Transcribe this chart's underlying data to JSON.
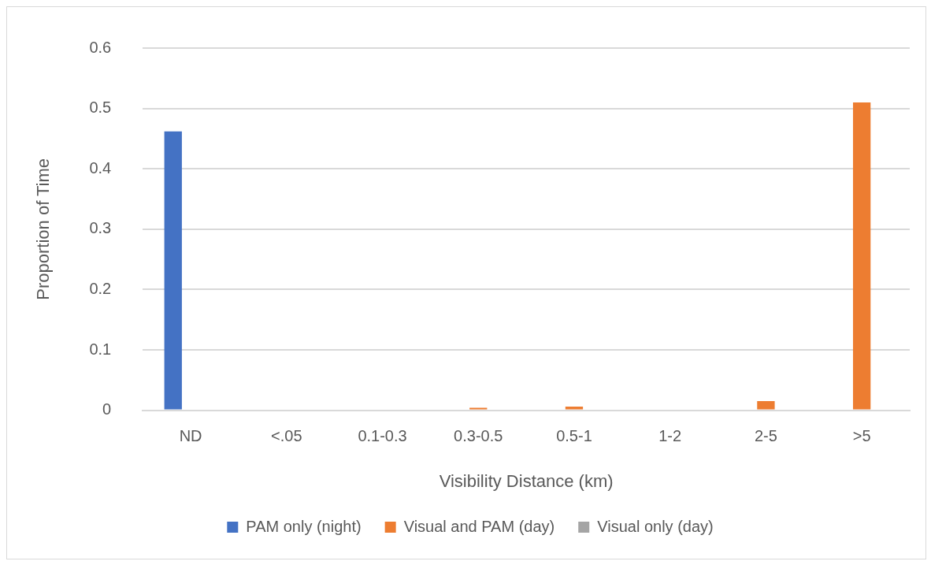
{
  "chart_data": {
    "type": "bar",
    "xlabel": "Visibility Distance (km)",
    "ylabel": "Proportion of Time",
    "categories": [
      "ND",
      "<.05",
      "0.1-0.3",
      "0.3-0.5",
      "0.5-1",
      "1-2",
      "2-5",
      ">5"
    ],
    "series": [
      {
        "name": "PAM only (night)",
        "color": "#4472c4",
        "values": [
          0.462,
          0,
          0,
          0,
          0,
          0,
          0,
          0
        ]
      },
      {
        "name": "Visual and PAM (day)",
        "color": "#ed7d31",
        "values": [
          0,
          0,
          0,
          0.004,
          0.006,
          0,
          0.015,
          0.51
        ]
      },
      {
        "name": "Visual only (day)",
        "color": "#a5a5a5",
        "values": [
          0,
          0,
          0,
          0,
          0,
          0,
          0,
          0
        ]
      }
    ],
    "ylim": [
      0,
      0.6
    ],
    "yticks": [
      0,
      0.1,
      0.2,
      0.3,
      0.4,
      0.5,
      0.6
    ],
    "grid": "y",
    "legend": "bottom"
  }
}
